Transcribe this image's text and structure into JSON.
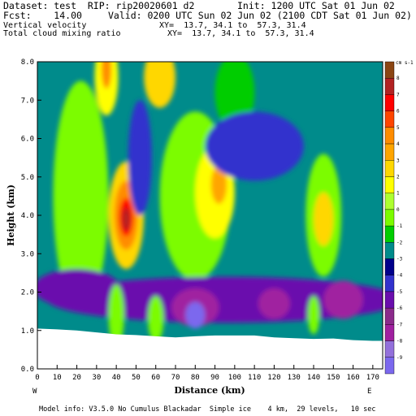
{
  "header": {
    "line1_left": "Dataset: test  RIP: rip20020601 d2",
    "line1_right": "Init: 1200 UTC Sat 01 Jun 02",
    "line2_left": "Fcst:    14.00",
    "line2_right": "Valid: 0200 UTC Sun 02 Jun 02 (2100 CDT Sat 01 Jun 02)",
    "field1_label": "Vertical velocity",
    "field1_xy": "XY=  13.7, 34.1 to  57.3, 31.4",
    "field2_label": "Total cloud mixing ratio",
    "field2_xy": "XY=  13.7, 34.1 to  57.3, 31.4"
  },
  "footer": {
    "model_info": "Model info: V3.5.0 No Cumulus Blackadar  Simple ice    4 km,  29 levels,   10 sec"
  },
  "chart_data": {
    "type": "heatmap",
    "title": "Vertical velocity",
    "xlabel": "Distance (km)",
    "ylabel": "Height (km)",
    "xlim": [
      0,
      175
    ],
    "ylim": [
      0,
      8
    ],
    "x_ticks": [
      "0",
      "10",
      "20",
      "30",
      "40",
      "50",
      "60",
      "70",
      "80",
      "90",
      "100",
      "110",
      "120",
      "130",
      "140",
      "150",
      "160",
      "170"
    ],
    "y_ticks": [
      "0.0",
      "1.0",
      "2.0",
      "3.0",
      "4.0",
      "5.0",
      "6.0",
      "7.0",
      "8.0"
    ],
    "x_end_labels": {
      "left": "W",
      "right": "E"
    },
    "colorbar": {
      "unit": "cm s-1",
      "levels": [
        "8",
        "7",
        "6",
        "5",
        "4",
        "3",
        "2",
        "1",
        "0",
        "-1",
        "-2",
        "-3",
        "-4",
        "-5",
        "-6",
        "-7",
        "-8",
        "-9"
      ],
      "colors": [
        "#8b4513",
        "#b22222",
        "#ff0000",
        "#ff4500",
        "#ff8c00",
        "#ffa500",
        "#ffd700",
        "#ffff00",
        "#adff2f",
        "#7cfc00",
        "#00cd00",
        "#008b8b",
        "#00008b",
        "#3232cd",
        "#6a0dad",
        "#8b2a8b",
        "#a020a0",
        "#9370db",
        "#7b68ee"
      ]
    },
    "background_level": "-3",
    "terrain_km": [
      [
        0,
        1.05
      ],
      [
        10,
        1.03
      ],
      [
        20,
        1.0
      ],
      [
        30,
        0.95
      ],
      [
        40,
        0.9
      ],
      [
        50,
        0.88
      ],
      [
        60,
        0.85
      ],
      [
        70,
        0.82
      ],
      [
        80,
        0.85
      ],
      [
        90,
        0.87
      ],
      [
        100,
        0.87
      ],
      [
        110,
        0.87
      ],
      [
        120,
        0.82
      ],
      [
        130,
        0.8
      ],
      [
        140,
        0.78
      ],
      [
        150,
        0.79
      ],
      [
        160,
        0.75
      ],
      [
        170,
        0.73
      ],
      [
        175,
        0.73
      ]
    ],
    "features": [
      {
        "x": 45,
        "y": 4.0,
        "rx": 9,
        "ry": 1.4,
        "level": "3"
      },
      {
        "x": 45,
        "y": 4.0,
        "rx": 6,
        "ry": 0.9,
        "level": "5"
      },
      {
        "x": 45,
        "y": 3.95,
        "rx": 3.5,
        "ry": 0.5,
        "level": "7"
      },
      {
        "x": 45,
        "y": 3.9,
        "rx": 2,
        "ry": 0.3,
        "level": "8"
      },
      {
        "x": 22,
        "y": 4.5,
        "rx": 14,
        "ry": 3.0,
        "level": "0"
      },
      {
        "x": 80,
        "y": 4.5,
        "rx": 18,
        "ry": 2.2,
        "level": "0"
      },
      {
        "x": 90,
        "y": 4.6,
        "rx": 10,
        "ry": 1.2,
        "level": "2"
      },
      {
        "x": 92,
        "y": 4.8,
        "rx": 4,
        "ry": 0.5,
        "level": "4"
      },
      {
        "x": 145,
        "y": 4.0,
        "rx": 9,
        "ry": 1.6,
        "level": "0"
      },
      {
        "x": 145,
        "y": 3.9,
        "rx": 5,
        "ry": 0.7,
        "level": "3"
      },
      {
        "x": 35,
        "y": 7.6,
        "rx": 6,
        "ry": 1.0,
        "level": "2"
      },
      {
        "x": 35,
        "y": 7.8,
        "rx": 2.5,
        "ry": 0.5,
        "level": "5"
      },
      {
        "x": 62,
        "y": 7.6,
        "rx": 8,
        "ry": 0.8,
        "level": "3"
      },
      {
        "x": 100,
        "y": 7.2,
        "rx": 10,
        "ry": 1.0,
        "level": "-1"
      },
      {
        "x": 110,
        "y": 5.8,
        "rx": 25,
        "ry": 0.9,
        "level": "-4"
      },
      {
        "x": 52,
        "y": 5.5,
        "rx": 6,
        "ry": 1.5,
        "level": "-4"
      },
      {
        "x": 95,
        "y": 1.8,
        "rx": 90,
        "ry": 0.6,
        "level": "-5"
      },
      {
        "x": 80,
        "y": 1.6,
        "rx": 12,
        "ry": 0.5,
        "level": "-7"
      },
      {
        "x": 80,
        "y": 1.4,
        "rx": 5,
        "ry": 0.35,
        "level": "-9"
      },
      {
        "x": 155,
        "y": 1.8,
        "rx": 10,
        "ry": 0.5,
        "level": "-7"
      },
      {
        "x": 120,
        "y": 1.7,
        "rx": 8,
        "ry": 0.4,
        "level": "-7"
      },
      {
        "x": 20,
        "y": 2.1,
        "rx": 22,
        "ry": 0.5,
        "level": "-5"
      },
      {
        "x": 40,
        "y": 1.4,
        "rx": 4,
        "ry": 0.8,
        "level": "0"
      },
      {
        "x": 60,
        "y": 1.3,
        "rx": 4,
        "ry": 0.6,
        "level": "0"
      },
      {
        "x": 140,
        "y": 1.4,
        "rx": 3,
        "ry": 0.5,
        "level": "0"
      }
    ]
  }
}
